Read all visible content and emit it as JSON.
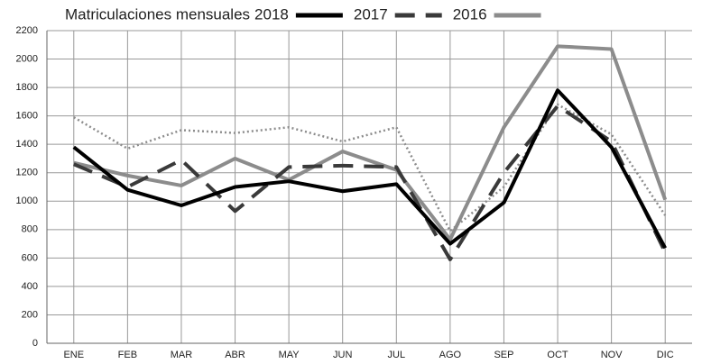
{
  "chart_data": {
    "type": "line",
    "title": "Matriculaciones mensuales",
    "categories": [
      "ENE",
      "FEB",
      "MAR",
      "ABR",
      "MAY",
      "JUN",
      "JUL",
      "AGO",
      "SEP",
      "OCT",
      "NOV",
      "DIC"
    ],
    "series": [
      {
        "name": "2018",
        "color": "#000000",
        "style": "solid",
        "values": [
          1380,
          1080,
          970,
          1100,
          1140,
          1070,
          1120,
          700,
          990,
          1780,
          1380,
          670
        ]
      },
      {
        "name": "2017",
        "color": "#3a3a3a",
        "style": "dashed",
        "values": [
          1260,
          1100,
          1290,
          930,
          1240,
          1250,
          1240,
          590,
          1200,
          1670,
          1420,
          640
        ]
      },
      {
        "name": "2016",
        "color": "#8c8c8c",
        "style": "solid",
        "values": [
          1270,
          1180,
          1110,
          1300,
          1150,
          1350,
          1220,
          730,
          1520,
          2090,
          2070,
          1010
        ]
      },
      {
        "color": "#8c8c8c",
        "style": "dotted",
        "values": [
          1590,
          1370,
          1500,
          1480,
          1520,
          1420,
          1520,
          790,
          1100,
          1680,
          1470,
          900
        ]
      }
    ],
    "ylim": [
      0,
      2200
    ],
    "yticks": [
      0,
      200,
      400,
      600,
      800,
      1000,
      1200,
      1400,
      1600,
      1800,
      2000,
      2200
    ],
    "grid": true
  }
}
